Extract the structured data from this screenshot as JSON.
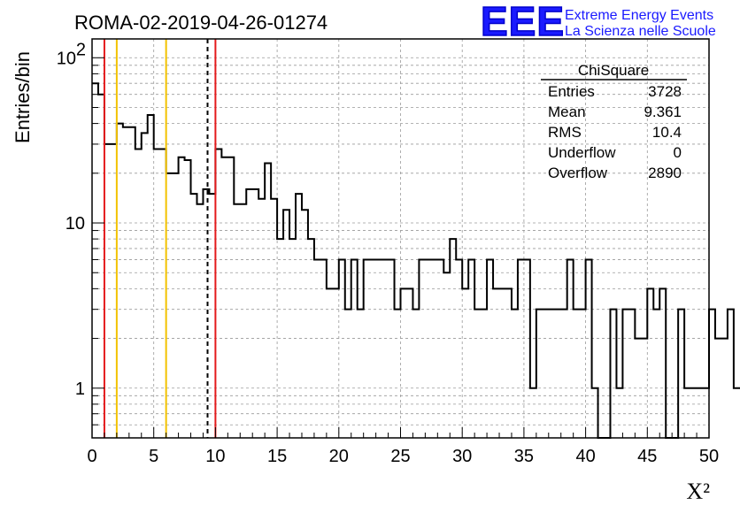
{
  "title": "ROMA-02-2019-04-26-01274",
  "logo": {
    "mark": "EEE",
    "line1": "Extreme Energy Events",
    "line2": "La Scienza nelle Scuole",
    "color": "#1a1aff"
  },
  "stats": {
    "name": "ChiSquare",
    "rows": [
      {
        "label": "Entries",
        "value": "3728"
      },
      {
        "label": "Mean",
        "value": "9.361"
      },
      {
        "label": "RMS",
        "value": "10.4"
      },
      {
        "label": "Underflow",
        "value": "0"
      },
      {
        "label": "Overflow",
        "value": "2890"
      }
    ]
  },
  "chart_data": {
    "type": "histogram",
    "title": "ROMA-02-2019-04-26-01274",
    "xlabel": "Χ²",
    "ylabel": "Entries/bin",
    "xlim": [
      0,
      50
    ],
    "ylim": [
      0.5,
      130
    ],
    "yscale": "log",
    "grid": true,
    "bin_width": 0.5,
    "x_ticks": [
      "0",
      "5",
      "10",
      "15",
      "20",
      "25",
      "30",
      "35",
      "40",
      "45",
      "50"
    ],
    "y_ticks": [
      {
        "value": 1,
        "label": "1"
      },
      {
        "value": 10,
        "label": "10"
      },
      {
        "value": 100,
        "label": "10",
        "exp": "2"
      }
    ],
    "values": [
      70,
      60,
      30,
      30,
      40,
      38,
      38,
      28,
      35,
      45,
      28,
      28,
      20,
      20,
      25,
      24,
      15,
      13,
      16,
      15,
      28,
      25,
      25,
      13,
      13,
      16,
      16,
      14,
      23,
      14,
      8,
      12,
      8,
      15,
      12,
      8,
      6,
      6,
      4,
      4,
      6,
      3,
      6,
      3,
      6,
      6,
      6,
      6,
      6,
      3,
      4,
      4,
      3,
      6,
      6,
      6,
      6,
      5,
      8,
      6,
      4,
      6,
      3,
      3,
      6,
      4,
      4,
      4,
      3,
      6,
      6,
      1,
      3,
      3,
      3,
      3,
      3,
      6,
      3,
      3,
      6,
      1,
      0.5,
      0.5,
      3,
      1,
      3,
      3,
      2,
      2,
      4,
      3,
      4,
      0.5,
      0.5,
      3,
      1,
      1,
      1,
      1,
      3,
      2,
      2,
      3,
      1,
      1,
      3,
      1,
      3,
      2,
      2,
      2,
      2,
      2,
      2,
      3,
      2,
      1,
      1,
      1,
      1,
      0.5,
      1,
      1,
      1,
      1,
      3,
      1,
      3,
      2,
      1,
      3,
      2,
      1,
      3,
      3,
      1,
      1,
      1,
      1,
      1,
      0.5,
      2,
      2,
      2,
      2,
      1,
      2,
      2,
      2,
      1,
      3,
      1,
      1,
      1,
      0.5,
      3,
      0.5,
      0.5,
      1,
      1,
      1,
      1,
      1
    ],
    "vlines": [
      {
        "x": 1,
        "color": "#e41a1c",
        "style": "solid"
      },
      {
        "x": 2,
        "color": "#f2c200",
        "style": "solid"
      },
      {
        "x": 6,
        "color": "#f2c200",
        "style": "solid"
      },
      {
        "x": 9.361,
        "color": "#000000",
        "style": "dashed"
      },
      {
        "x": 10,
        "color": "#e41a1c",
        "style": "solid"
      }
    ]
  }
}
